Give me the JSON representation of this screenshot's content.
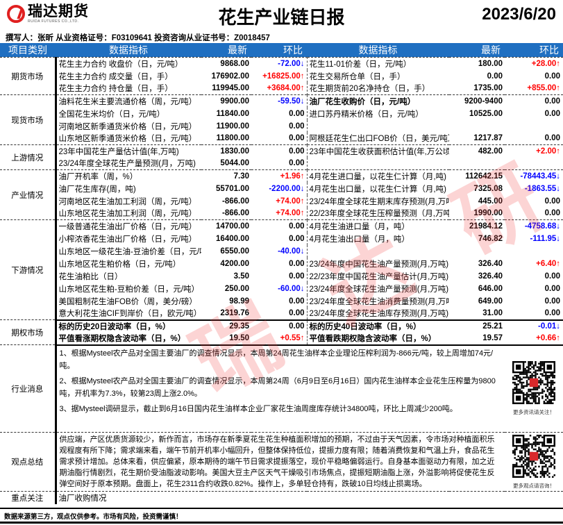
{
  "header": {
    "logo_cn": "瑞达期货",
    "logo_en": "RUIDA FUTURES CO.,LTD.",
    "title": "花生产业链日报",
    "date": "2023/6/20"
  },
  "author_line": "撰写人：张昕   从业资格证号：F03109641   投资咨询从业证书号：Z0018457",
  "columns": [
    "项目类别",
    "数据指标",
    "最新",
    "环比",
    "数据指标",
    "最新",
    "环比"
  ],
  "colors": {
    "header_bg": "#1f6fc1",
    "up": "#ff0000",
    "down": "#0000ff"
  },
  "sections": [
    {
      "category": "期货市场",
      "rows": [
        {
          "l": [
            "花生主力合约 收盘价（日，元/吨）",
            "9868.00",
            "-72.00↓",
            "down"
          ],
          "r": [
            "花生11-01价差（日，元/吨）",
            "180.00",
            "+28.00↑",
            "up"
          ]
        },
        {
          "l": [
            "花生主力合约 成交量（日，手）",
            "176902.00",
            "+16825.00↑",
            "up"
          ],
          "r": [
            "花生交易所仓单（日，手）",
            "0.00",
            "0.00",
            ""
          ]
        },
        {
          "l": [
            "花生主力合约 持仓量（日，手）",
            "119945.00",
            "+3684.00↑",
            "up"
          ],
          "r": [
            "花生期货前20名净持仓（日，手）",
            "1735.00",
            "+855.00↑",
            "up"
          ]
        }
      ]
    },
    {
      "category": "现货市场",
      "rows": [
        {
          "l": [
            "油料花生米主要流通价格（周，元/吨）",
            "9900.00",
            "-59.50↓",
            "down"
          ],
          "r": [
            "油厂花生收购价（日，元/吨）",
            "9200-9400",
            "0.00",
            "",
            "bold"
          ]
        },
        {
          "l": [
            "全国花生米均价（日，元/吨）",
            "11840.00",
            "0.00",
            ""
          ],
          "r": [
            "进口苏丹精米价格（日，元/吨）",
            "10525.00",
            "0.00",
            ""
          ]
        },
        {
          "l": [
            "河南地区新季通货米价格（日，元/吨）",
            "11900.00",
            "0.00",
            ""
          ],
          "r": [
            "",
            "",
            "",
            ""
          ]
        },
        {
          "l": [
            "山东地区新季通货米价格（日，元/吨）",
            "11800.00",
            "0.00",
            ""
          ],
          "r": [
            "阿根廷花生仁出口FOB价（日，美元/吨）",
            "1217.87",
            "0.00",
            ""
          ]
        }
      ]
    },
    {
      "category": "上游情况",
      "rows": [
        {
          "l": [
            "23年中国花生产量估计值(年,万吨)",
            "1830.00",
            "0.00",
            ""
          ],
          "r": [
            "23年中国花生收获面积估计值(年,万公顷)",
            "482.00",
            "+2.00↑",
            "up"
          ]
        },
        {
          "l": [
            "23/24年度全球花生产量预测(月，万吨)",
            "5044.00",
            "0.00",
            ""
          ],
          "r": [
            "",
            "",
            "",
            ""
          ]
        }
      ]
    },
    {
      "category": "产业情况",
      "rows": [
        {
          "l": [
            "油厂开机率（周，%）",
            "7.30",
            "+1.96↑",
            "up"
          ],
          "r": [
            "4月花生进口量，以花生仁计算（月,吨)",
            "112642.15",
            "-78443.45↓",
            "down"
          ]
        },
        {
          "l": [
            "油厂花生库存(周，吨)",
            "55701.00",
            "-2200.00↓",
            "down"
          ],
          "r": [
            "4月花生出口量，以花生仁计算（月,吨)",
            "7325.08",
            "-1863.55↓",
            "down"
          ]
        },
        {
          "l": [
            "河南地区花生油加工利润（周，元/吨）",
            "-866.00",
            "+74.00↑",
            "up"
          ],
          "r": [
            "23/24年度全球花生期末库存预测(月,万吨)",
            "445.00",
            "0.00",
            ""
          ]
        },
        {
          "l": [
            "山东地区花生油加工利润（周，元/吨）",
            "-866.00",
            "+74.00↑",
            "up"
          ],
          "r": [
            "22/23年度全球花生压榨量预测（月,万吨)",
            "1990.00",
            "0.00",
            ""
          ]
        }
      ]
    },
    {
      "category": "下游情况",
      "rows": [
        {
          "l": [
            "一级普通花生油出厂价格（日，元/吨）",
            "14700.00",
            "0.00",
            ""
          ],
          "r": [
            "4月花生油进口量（月，吨）",
            "21984.12",
            "-4758.68↓",
            "down"
          ]
        },
        {
          "l": [
            "小榨浓香花生油出厂价格（日，元/吨）",
            "16400.00",
            "0.00",
            ""
          ],
          "r": [
            "4月花生油出口量（月，吨）",
            "746.82",
            "-111.95↓",
            "down"
          ]
        },
        {
          "l": [
            "山东地区一级花生油-豆油价差（日，元/吨",
            "6550.00",
            "-40.00↓",
            "down"
          ],
          "r": [
            "",
            "",
            "",
            ""
          ]
        },
        {
          "l": [
            "山东地区花生粕价格（日，元/吨）",
            "4200.00",
            "0.00",
            ""
          ],
          "r": [
            "23/24年度中国花生油产量预测(月,万吨)",
            "326.40",
            "+6.40↑",
            "up"
          ]
        },
        {
          "l": [
            "花生油粕比（日）",
            "3.50",
            "0.00",
            ""
          ],
          "r": [
            "22/23年度中国花生油产量估计(月,万吨)",
            "326.40",
            "0.00",
            ""
          ]
        },
        {
          "l": [
            "山东地区花生粕-豆粕价差（日，元/吨）",
            "250.00",
            "-60.00↓",
            "down"
          ],
          "r": [
            "23/24年度全球花生油产量预测(月,万吨)",
            "646.00",
            "0.00",
            ""
          ]
        },
        {
          "l": [
            "美国粗制花生油FOB价（周，美分/磅）",
            "98.99",
            "0.00",
            ""
          ],
          "r": [
            "23/24年度全球花生油消费量预测(月,万吨)",
            "649.00",
            "0.00",
            ""
          ]
        },
        {
          "l": [
            "意大利花生油CIF到岸价（日，欧元/吨）",
            "2319.76",
            "0.00",
            ""
          ],
          "r": [
            "23/24年度全球花生油库存预测(月,万吨)",
            "31.00",
            "0.00",
            ""
          ]
        }
      ]
    },
    {
      "category": "期权市场",
      "options": true,
      "rows": [
        {
          "l": [
            "标的历史20日波动率（日，%）",
            "29.35",
            "0.00",
            "",
            "bold"
          ],
          "r": [
            "标的历史40日波动率（日，%）",
            "25.21",
            "-0.01↓",
            "down",
            "bold"
          ]
        },
        {
          "l": [
            "平值看涨期权隐含波动率（日，%）",
            "19.50",
            "+0.55↑",
            "up",
            "bold"
          ],
          "r": [
            "平值看跌期权隐含波动率（日，%）",
            "19.57",
            "+0.66↑",
            "up",
            "bold"
          ]
        }
      ]
    }
  ],
  "news": {
    "category": "行业消息",
    "items": [
      "1、根据Mysteel农产品对全国主要油厂的调查情况显示，本周第24周花生油样本企业理论压榨利润为-866元/吨，较上周增加74元/吨。",
      "2、根据Mysteel农产品对全国主要油厂的调查情况显示，本周第24周（6月9日至6月16日）国内花生油样本企业花生压榨量为9800吨，开机率为7.3%，较第23周上涨2.0%。",
      "3、据Mysteel调研显示，截止到6月16日国内花生油样本企业厂家花生油周度库存统计34800吨，环比上周减少200吨。"
    ],
    "qr_caption": "更多资讯请关注！"
  },
  "summary": {
    "category": "观点总结",
    "text": "供应端，产区优质货源较少，新作而言，市场存在新季夏花生花生种植面积增加的预期，不过由于天气因素，令市场对种植面积乐观程度有所下降；需求端来看，端午节前开机率小幅回升，但整体保持低位，提振力度有限；随着消费恢复和气温上升，食品花生需求预计增加。总体来看，供应偏紧，原本期待的端午节日需求提振落空，现价平稳略偏弱运行。自身基本面驱动力有限，加之近期油脂行情剧烈，花生期价受油脂波动影响。美国大豆主产区天气干燥吸引市场焦点，提振短期油脂上涨，外溢影响将促使花生反弹空间好于原本预期。盘面上，花生2311合约收跌0.82%。操作上，多单轻仓持有，跌破10日均线止损离场。",
    "qr_caption": "更多观点请咨询！"
  },
  "focus": {
    "category": "重点关注",
    "text": "油厂收购情况"
  },
  "footer": "数据来源第三方，观点仅供参考。市场有风险，投资需谨慎！",
  "watermark": "瑞达研究"
}
